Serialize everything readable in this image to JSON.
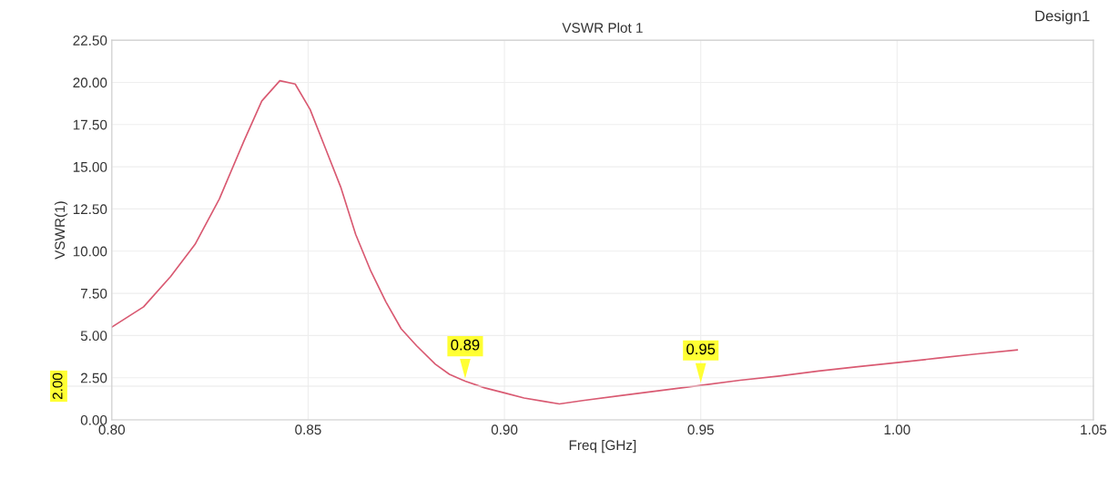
{
  "chart_data": {
    "type": "line",
    "title": "VSWR Plot 1",
    "xlabel": "Freq [GHz]",
    "ylabel": "VSWR(1)",
    "x": [
      0.8,
      0.8081,
      0.815,
      0.8212,
      0.8274,
      0.8336,
      0.8382,
      0.8428,
      0.8467,
      0.8505,
      0.8544,
      0.8583,
      0.8621,
      0.866,
      0.8698,
      0.8737,
      0.8776,
      0.8824,
      0.886,
      0.89,
      0.895,
      0.9,
      0.905,
      0.91,
      0.914,
      0.92,
      0.93,
      0.94,
      0.95,
      0.96,
      0.97,
      0.98,
      0.99,
      1.0,
      1.01,
      1.02,
      1.0306
    ],
    "series": [
      {
        "color": "#d95a72",
        "values": [
          5.5,
          6.7,
          8.5,
          10.4,
          13.1,
          16.5,
          18.9,
          20.1,
          19.9,
          18.4,
          16.1,
          13.8,
          11.0,
          8.8,
          7.0,
          5.4,
          4.4,
          3.3,
          2.7,
          2.3,
          1.9,
          1.6,
          1.3,
          1.1,
          0.95,
          1.15,
          1.45,
          1.75,
          2.05,
          2.35,
          2.6,
          2.9,
          3.15,
          3.4,
          3.65,
          3.9,
          4.15
        ]
      }
    ],
    "xlim": [
      0.8,
      1.05
    ],
    "ylim": [
      0,
      22.5
    ],
    "xticks": [
      {
        "value": 0.8,
        "label": "0.80"
      },
      {
        "value": 0.85,
        "label": "0.85"
      },
      {
        "value": 0.9,
        "label": "0.90"
      },
      {
        "value": 0.95,
        "label": "0.95"
      },
      {
        "value": 1.0,
        "label": "1.00"
      },
      {
        "value": 1.05,
        "label": "1.05"
      }
    ],
    "yticks": [
      {
        "value": 0,
        "label": "0.00"
      },
      {
        "value": 2.5,
        "label": "2.50"
      },
      {
        "value": 5,
        "label": "5.00"
      },
      {
        "value": 7.5,
        "label": "7.50"
      },
      {
        "value": 10,
        "label": "10.00"
      },
      {
        "value": 12.5,
        "label": "12.50"
      },
      {
        "value": 15,
        "label": "15.00"
      },
      {
        "value": 17.5,
        "label": "17.50"
      },
      {
        "value": 20,
        "label": "20.00"
      },
      {
        "value": 22.5,
        "label": "22.50"
      }
    ],
    "ref_lines": [
      {
        "axis": "y",
        "value": 2,
        "label": "2.00"
      }
    ],
    "annotations": [
      {
        "text": "0.89",
        "x": 0.89,
        "y": 2.3
      },
      {
        "text": "0.95",
        "x": 0.95,
        "y": 2.05
      },
      "Design1"
    ],
    "grid": true,
    "line_style": "solid",
    "marker": "none",
    "legend": false
  }
}
